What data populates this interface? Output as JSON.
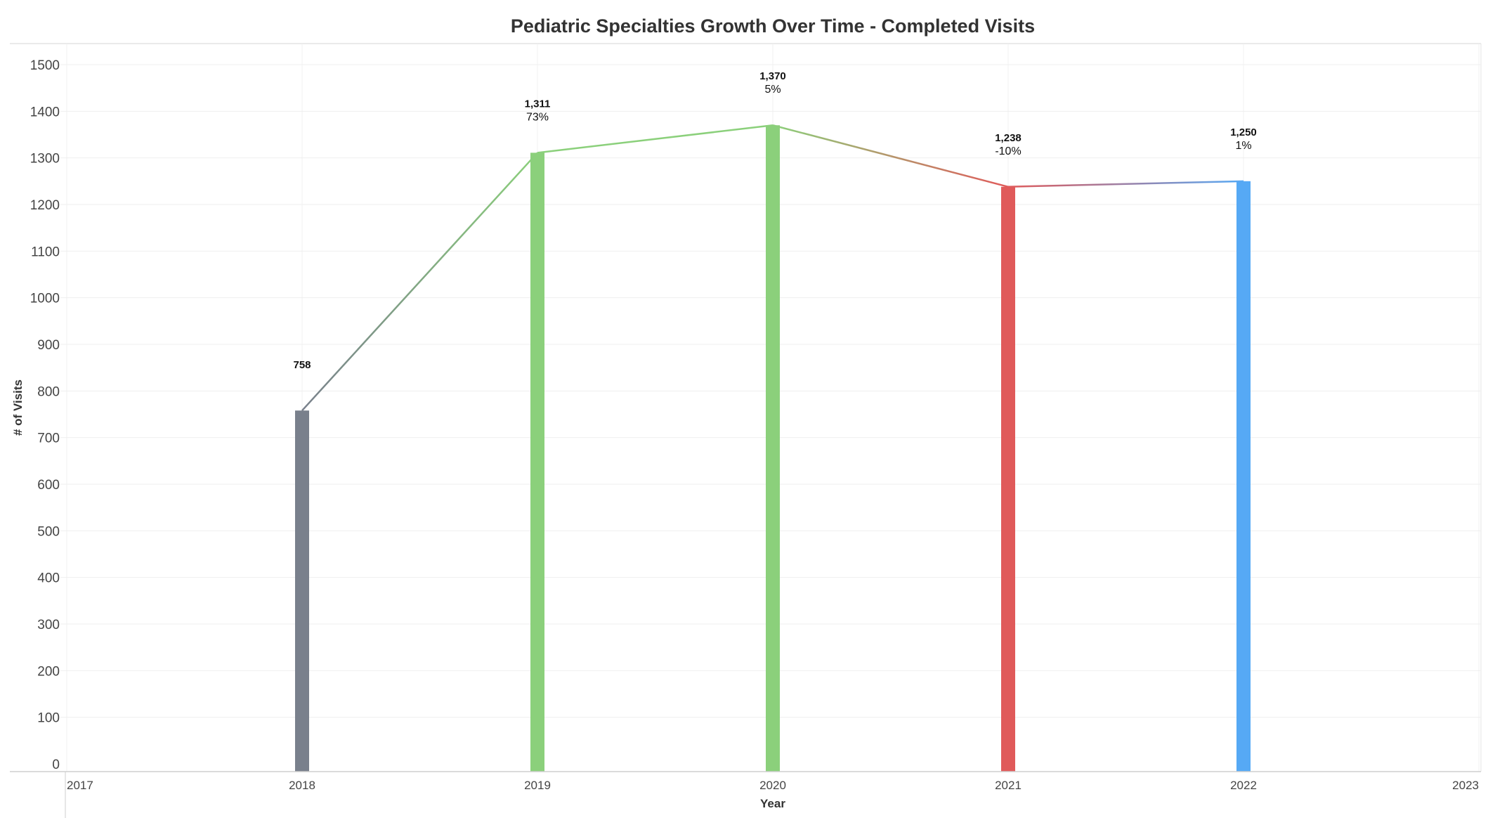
{
  "chart_data": {
    "type": "bar",
    "title": "Pediatric Specialties Growth Over Time - Completed Visits",
    "xlabel": "Year",
    "ylabel": "# of Visits",
    "xlim": [
      2017,
      2023
    ],
    "x_ticks": [
      "2017",
      "2018",
      "2019",
      "2020",
      "2021",
      "2022",
      "2023"
    ],
    "ylim": [
      0,
      1500
    ],
    "y_ticks": [
      "0",
      "100",
      "200",
      "300",
      "400",
      "500",
      "600",
      "700",
      "800",
      "900",
      "1000",
      "1100",
      "1200",
      "1300",
      "1400",
      "1500"
    ],
    "grid": true,
    "line_overlay": true,
    "points": [
      {
        "x": 2018,
        "value": 758,
        "label": "758",
        "pct": "",
        "color": "#79808c"
      },
      {
        "x": 2019,
        "value": 1311,
        "label": "1,311",
        "pct": "73%",
        "color": "#8bd07b"
      },
      {
        "x": 2020,
        "value": 1370,
        "label": "1,370",
        "pct": "5%",
        "color": "#8bd07b"
      },
      {
        "x": 2021,
        "value": 1238,
        "label": "1,238",
        "pct": "-10%",
        "color": "#e05a5a"
      },
      {
        "x": 2022,
        "value": 1250,
        "label": "1,250",
        "pct": "1%",
        "color": "#56a9f5"
      }
    ]
  }
}
